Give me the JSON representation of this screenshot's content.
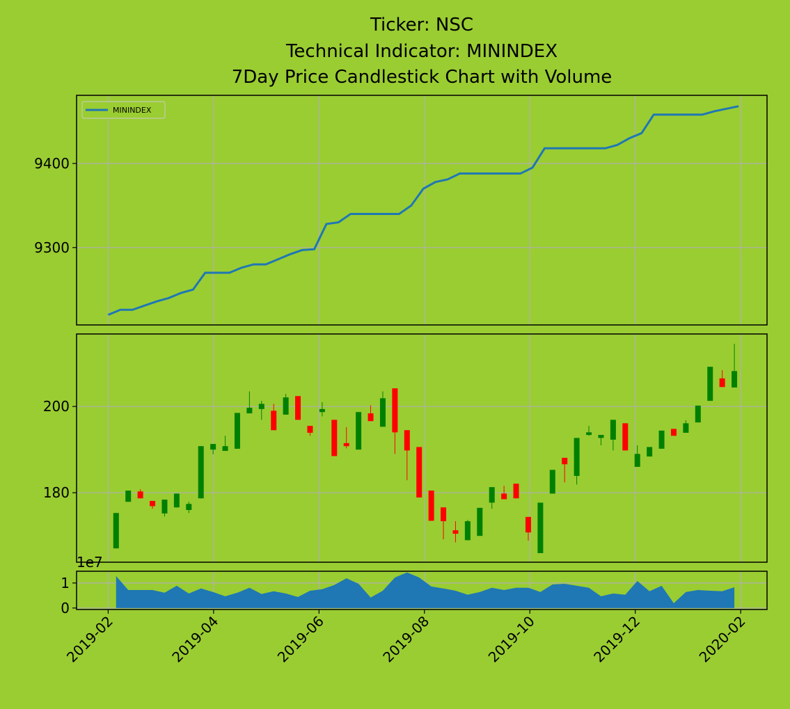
{
  "chart_data": [
    {
      "type": "line",
      "title": [
        "Ticker: NSC",
        "Technical Indicator: MININDEX",
        "7Day Price Candlestick Chart with Volume"
      ],
      "x": [
        1,
        1.23,
        1.46,
        1.69,
        1.92,
        2.15,
        2.38,
        2.61,
        2.84,
        3.07,
        3.3,
        3.53,
        3.76,
        3.99,
        4.22,
        4.45,
        4.68,
        4.91,
        5.14,
        5.37,
        5.6,
        5.83,
        6.06,
        6.29,
        6.52,
        6.75,
        6.98,
        7.21,
        7.44,
        7.67,
        7.9,
        8.13,
        8.36,
        8.59,
        8.82,
        9.05,
        9.28,
        9.51,
        9.74,
        9.97,
        10.2,
        10.43,
        10.66,
        10.89,
        11.12,
        11.35,
        11.58,
        11.81,
        12.04,
        12.27,
        12.5,
        12.73,
        12.96
      ],
      "series": [
        {
          "name": "MININDEX",
          "color": "#1f77b4",
          "values": [
            9220,
            9226,
            9226,
            9231,
            9236,
            9240,
            9246,
            9250,
            9270,
            9270,
            9270,
            9276,
            9280,
            9280,
            9286,
            9292,
            9297,
            9298,
            9328,
            9330,
            9340,
            9340,
            9340,
            9340,
            9340,
            9350,
            9370,
            9378,
            9381,
            9388,
            9388,
            9388,
            9388,
            9388,
            9388,
            9395,
            9418,
            9418,
            9418,
            9418,
            9418,
            9418,
            9422,
            9430,
            9436,
            9458,
            9458,
            9458,
            9458,
            9458,
            9462,
            9465,
            9468
          ]
        }
      ],
      "legend": "upper left",
      "ylim": [
        9208,
        9481
      ],
      "yticks": [
        9300,
        9400
      ],
      "grid": true
    },
    {
      "type": "candlestick",
      "x": [
        1.15,
        1.38,
        1.61,
        1.84,
        2.07,
        2.3,
        2.53,
        2.76,
        2.99,
        3.22,
        3.45,
        3.68,
        3.91,
        4.14,
        4.37,
        4.6,
        4.83,
        5.06,
        5.29,
        5.52,
        5.75,
        5.98,
        6.21,
        6.44,
        6.67,
        6.9,
        7.13,
        7.36,
        7.59,
        7.82,
        8.05,
        8.28,
        8.51,
        8.74,
        8.97,
        9.2,
        9.43,
        9.66,
        9.89,
        10.12,
        10.35,
        10.58,
        10.81,
        11.04,
        11.27,
        11.5,
        11.73,
        11.96,
        12.19,
        12.42,
        12.65,
        12.88
      ],
      "open": [
        167.1,
        177.9,
        180.3,
        178.1,
        175.2,
        176.6,
        176,
        178.7,
        190,
        189.7,
        190.2,
        198.4,
        199.4,
        199,
        198.1,
        202.4,
        195.5,
        198.7,
        196.9,
        191.5,
        190,
        198.4,
        195.3,
        204.2,
        194.5,
        190.6,
        180.5,
        176.6,
        171.3,
        169,
        170,
        177.7,
        179.8,
        182.1,
        174.4,
        166,
        179.8,
        188.1,
        183.9,
        193.4,
        192.7,
        192.3,
        196.1,
        186,
        188.4,
        190.2,
        194.8,
        193.9,
        196.3,
        201.3,
        206.5,
        204.4
      ],
      "high": [
        175.3,
        180.5,
        180.8,
        178.1,
        178.4,
        179.8,
        177.9,
        190.8,
        191.3,
        193.2,
        198.5,
        203.5,
        201.3,
        200.6,
        202.9,
        202.4,
        195.5,
        201,
        196.9,
        195.2,
        198.7,
        200.3,
        203.5,
        204.2,
        194.5,
        190.6,
        180.5,
        176.6,
        173.4,
        173.7,
        176.5,
        181.3,
        181.6,
        182.1,
        174.4,
        177.7,
        185.3,
        188.1,
        192.7,
        195.5,
        193.4,
        196.9,
        196.1,
        191,
        190.6,
        194.4,
        194.8,
        196.8,
        200.2,
        209.2,
        208.4,
        214.5
      ],
      "low": [
        167.1,
        177.9,
        178.7,
        176.3,
        174.5,
        176.6,
        175.3,
        178.7,
        188.9,
        189.7,
        190.2,
        198.4,
        196.9,
        194.5,
        198.1,
        196.9,
        193.2,
        197.7,
        188.5,
        190.3,
        190,
        196.6,
        195.3,
        189,
        182.9,
        178.9,
        173.5,
        169.2,
        168.5,
        169,
        170,
        176.3,
        178.5,
        178.7,
        168.9,
        166,
        179.8,
        182.4,
        181.9,
        193.2,
        191,
        189.8,
        189.8,
        186,
        188.4,
        190.2,
        193.2,
        193.9,
        196.3,
        201.3,
        204.5,
        204.4
      ],
      "close": [
        175.3,
        180.5,
        178.7,
        176.9,
        178.4,
        179.8,
        177.4,
        190.8,
        191.3,
        190.8,
        198.5,
        199.7,
        200.6,
        194.5,
        202.1,
        196.9,
        193.9,
        199.4,
        188.5,
        190.8,
        198.7,
        196.6,
        201.9,
        194,
        189.8,
        178.9,
        173.5,
        173.4,
        170.5,
        173.4,
        176.5,
        181.3,
        178.5,
        178.7,
        170.8,
        177.7,
        185.3,
        186.6,
        192.7,
        194,
        193.4,
        196.9,
        189.8,
        189,
        190.6,
        194.4,
        193.2,
        196.1,
        200.2,
        209.2,
        204.5,
        208.2
      ],
      "up_color": "green",
      "down_color": "red",
      "ylim": [
        163.9,
        216.8
      ],
      "yticks": [
        180,
        200
      ],
      "grid": true
    },
    {
      "type": "area",
      "x": [
        1.15,
        1.38,
        1.61,
        1.84,
        2.07,
        2.3,
        2.53,
        2.76,
        2.99,
        3.22,
        3.45,
        3.68,
        3.91,
        4.14,
        4.37,
        4.6,
        4.83,
        5.06,
        5.29,
        5.52,
        5.75,
        5.98,
        6.21,
        6.44,
        6.67,
        6.9,
        7.13,
        7.36,
        7.59,
        7.82,
        8.05,
        8.28,
        8.51,
        8.74,
        8.97,
        9.2,
        9.43,
        9.66,
        9.89,
        10.12,
        10.35,
        10.58,
        10.81,
        11.04,
        11.27,
        11.5,
        11.73,
        11.96,
        12.19,
        12.42,
        12.65,
        12.88
      ],
      "values": [
        1.28,
        0.72,
        0.72,
        0.72,
        0.61,
        0.89,
        0.58,
        0.78,
        0.64,
        0.47,
        0.61,
        0.81,
        0.56,
        0.67,
        0.58,
        0.44,
        0.69,
        0.75,
        0.92,
        1.19,
        0.97,
        0.42,
        0.69,
        1.22,
        1.42,
        1.22,
        0.86,
        0.78,
        0.69,
        0.53,
        0.64,
        0.81,
        0.72,
        0.81,
        0.81,
        0.64,
        0.94,
        0.97,
        0.89,
        0.81,
        0.47,
        0.58,
        0.53,
        1.08,
        0.67,
        0.89,
        0.19,
        0.64,
        0.72,
        0.69,
        0.67,
        0.83
      ],
      "color": "#1f77b4",
      "y_offset_label": "1e7",
      "ylim": [
        -0.06,
        1.47
      ],
      "yticks": [
        0,
        1
      ],
      "grid": true,
      "xlim": [
        0.4,
        13.5
      ],
      "xticks": [
        {
          "value": 1,
          "label": "2019-02"
        },
        {
          "value": 3,
          "label": "2019-04"
        },
        {
          "value": 5,
          "label": "2019-06"
        },
        {
          "value": 7,
          "label": "2019-08"
        },
        {
          "value": 9,
          "label": "2019-10"
        },
        {
          "value": 11,
          "label": "2019-12"
        },
        {
          "value": 13,
          "label": "2020-02"
        }
      ]
    }
  ]
}
